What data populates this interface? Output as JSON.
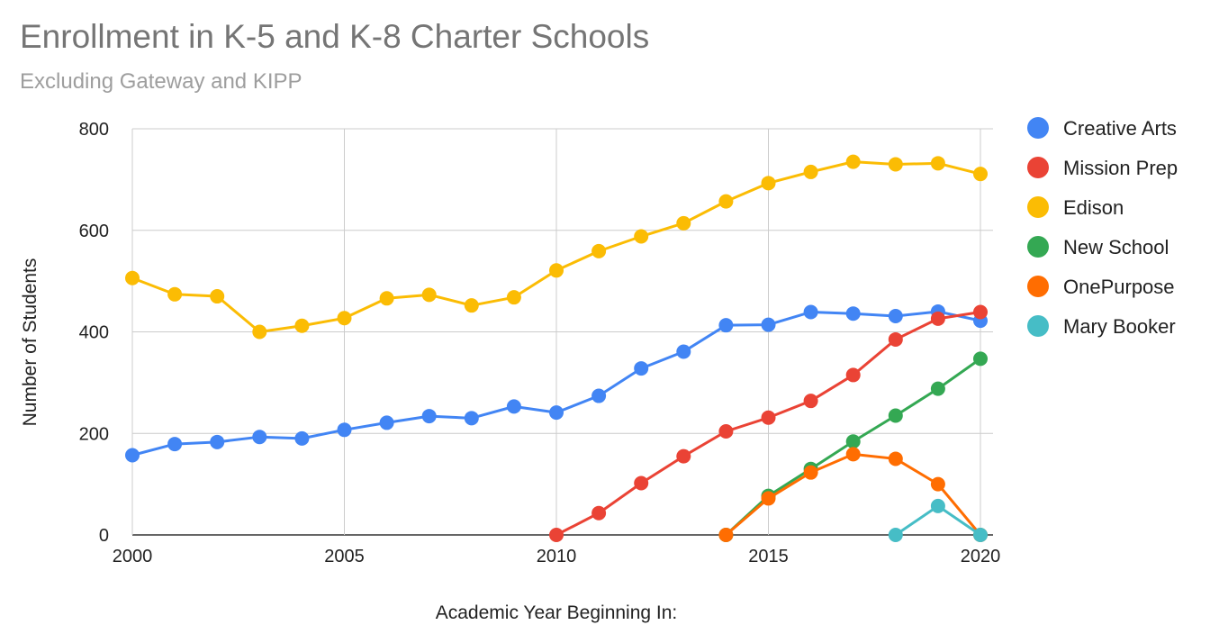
{
  "chart_data": {
    "type": "line",
    "title": "Enrollment in K-5 and K-8 Charter Schools",
    "subtitle": "Excluding Gateway and KIPP",
    "xlabel": "Academic Year Beginning In:",
    "ylabel": "Number of Students",
    "xlim": [
      2000,
      2020
    ],
    "ylim": [
      0,
      800
    ],
    "xticks": [
      2000,
      2005,
      2010,
      2015,
      2020
    ],
    "yticks": [
      0,
      200,
      400,
      600,
      800
    ],
    "grid": true,
    "legend_position": "right",
    "series": [
      {
        "name": "Creative Arts",
        "color": "#4285f4",
        "x": [
          2000,
          2001,
          2002,
          2003,
          2004,
          2005,
          2006,
          2007,
          2008,
          2009,
          2010,
          2011,
          2012,
          2013,
          2014,
          2015,
          2016,
          2017,
          2018,
          2019,
          2020
        ],
        "y": [
          157,
          179,
          183,
          193,
          190,
          207,
          221,
          234,
          230,
          253,
          241,
          274,
          328,
          361,
          413,
          414,
          439,
          436,
          431,
          440,
          422
        ]
      },
      {
        "name": "Mission Prep",
        "color": "#ea4335",
        "x": [
          2010,
          2011,
          2012,
          2013,
          2014,
          2015,
          2016,
          2017,
          2018,
          2019,
          2020
        ],
        "y": [
          0,
          43,
          102,
          155,
          204,
          231,
          264,
          315,
          385,
          426,
          439
        ]
      },
      {
        "name": "Edison",
        "color": "#fbbc04",
        "x": [
          2000,
          2001,
          2002,
          2003,
          2004,
          2005,
          2006,
          2007,
          2008,
          2009,
          2010,
          2011,
          2012,
          2013,
          2014,
          2015,
          2016,
          2017,
          2018,
          2019,
          2020
        ],
        "y": [
          506,
          474,
          470,
          400,
          412,
          427,
          466,
          473,
          452,
          468,
          521,
          559,
          588,
          614,
          657,
          693,
          715,
          735,
          730,
          732,
          711
        ]
      },
      {
        "name": "New School",
        "color": "#34a853",
        "x": [
          2014,
          2015,
          2016,
          2017,
          2018,
          2019,
          2020
        ],
        "y": [
          0,
          77,
          130,
          184,
          235,
          288,
          347
        ]
      },
      {
        "name": "OnePurpose",
        "color": "#ff6d01",
        "x": [
          2014,
          2015,
          2016,
          2017,
          2018,
          2019,
          2020
        ],
        "y": [
          0,
          72,
          123,
          159,
          150,
          100,
          0
        ]
      },
      {
        "name": "Mary Booker",
        "color": "#46bdc6",
        "x": [
          2018,
          2019,
          2020
        ],
        "y": [
          0,
          57,
          0
        ]
      }
    ]
  }
}
